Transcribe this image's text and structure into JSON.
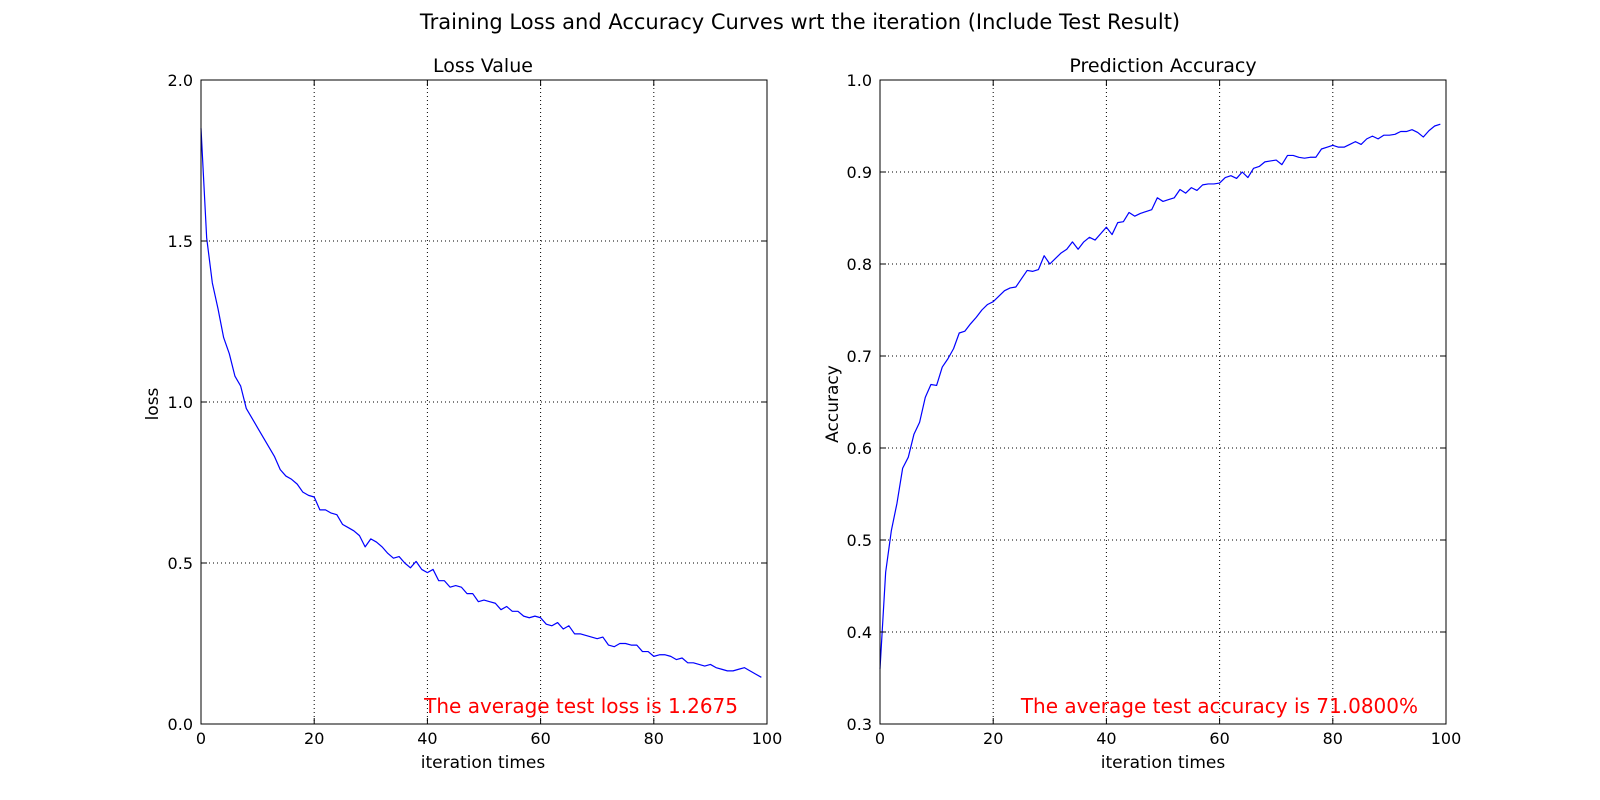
{
  "figure": {
    "suptitle": "Training Loss and Accuracy Curves wrt the iteration (Include Test Result)"
  },
  "colors": {
    "line": "#0000ff",
    "annotation": "#ff0000",
    "axes": "#000000",
    "grid": "#000000"
  },
  "chart_data": [
    {
      "type": "line",
      "title": "Loss Value",
      "xlabel": "iteration times",
      "ylabel": "loss",
      "xlim": [
        0,
        100
      ],
      "ylim": [
        0,
        2.0
      ],
      "xticks": [
        0,
        20,
        40,
        60,
        80,
        100
      ],
      "yticks": [
        0.0,
        0.5,
        1.0,
        1.5,
        2.0
      ],
      "xtick_labels": [
        "0",
        "20",
        "40",
        "60",
        "80",
        "100"
      ],
      "ytick_labels": [
        "0.0",
        "0.5",
        "1.0",
        "1.5",
        "2.0"
      ],
      "grid": true,
      "annotation": "The average test loss is 1.2675",
      "series": [
        {
          "name": "loss",
          "x_start": 0,
          "x_step": 1,
          "values": [
            1.85,
            1.51,
            1.37,
            1.29,
            1.2,
            1.15,
            1.08,
            1.05,
            0.98,
            0.95,
            0.92,
            0.89,
            0.86,
            0.83,
            0.79,
            0.77,
            0.76,
            0.745,
            0.72,
            0.71,
            0.705,
            0.665,
            0.665,
            0.655,
            0.65,
            0.62,
            0.61,
            0.6,
            0.585,
            0.55,
            0.575,
            0.565,
            0.55,
            0.53,
            0.515,
            0.52,
            0.5,
            0.485,
            0.505,
            0.48,
            0.47,
            0.48,
            0.445,
            0.445,
            0.425,
            0.43,
            0.425,
            0.405,
            0.405,
            0.38,
            0.385,
            0.38,
            0.375,
            0.355,
            0.365,
            0.35,
            0.35,
            0.335,
            0.33,
            0.335,
            0.33,
            0.31,
            0.305,
            0.315,
            0.295,
            0.305,
            0.28,
            0.28,
            0.275,
            0.27,
            0.265,
            0.27,
            0.245,
            0.24,
            0.25,
            0.25,
            0.245,
            0.245,
            0.225,
            0.225,
            0.21,
            0.215,
            0.215,
            0.21,
            0.2,
            0.205,
            0.19,
            0.19,
            0.185,
            0.18,
            0.185,
            0.175,
            0.17,
            0.165,
            0.165,
            0.17,
            0.175,
            0.165,
            0.155,
            0.145
          ]
        }
      ]
    },
    {
      "type": "line",
      "title": "Prediction Accuracy",
      "xlabel": "iteration times",
      "ylabel": "Accuracy",
      "xlim": [
        0,
        100
      ],
      "ylim": [
        0.3,
        1.0
      ],
      "xticks": [
        0,
        20,
        40,
        60,
        80,
        100
      ],
      "yticks": [
        0.3,
        0.4,
        0.5,
        0.6,
        0.7,
        0.8,
        0.9,
        1.0
      ],
      "xtick_labels": [
        "0",
        "20",
        "40",
        "60",
        "80",
        "100"
      ],
      "ytick_labels": [
        "0.3",
        "0.4",
        "0.5",
        "0.6",
        "0.7",
        "0.8",
        "0.9",
        "1.0"
      ],
      "grid": true,
      "annotation": "The average test accuracy is 71.0800%",
      "series": [
        {
          "name": "accuracy",
          "x_start": 0,
          "x_step": 1,
          "values": [
            0.36,
            0.465,
            0.51,
            0.54,
            0.578,
            0.59,
            0.615,
            0.628,
            0.655,
            0.669,
            0.668,
            0.688,
            0.697,
            0.708,
            0.725,
            0.727,
            0.735,
            0.742,
            0.75,
            0.756,
            0.759,
            0.765,
            0.771,
            0.774,
            0.775,
            0.784,
            0.793,
            0.792,
            0.794,
            0.809,
            0.8,
            0.806,
            0.812,
            0.816,
            0.824,
            0.816,
            0.824,
            0.829,
            0.826,
            0.833,
            0.84,
            0.832,
            0.845,
            0.846,
            0.856,
            0.852,
            0.855,
            0.857,
            0.859,
            0.872,
            0.868,
            0.87,
            0.872,
            0.881,
            0.877,
            0.883,
            0.88,
            0.886,
            0.887,
            0.887,
            0.888,
            0.894,
            0.896,
            0.893,
            0.9,
            0.894,
            0.904,
            0.906,
            0.911,
            0.912,
            0.913,
            0.908,
            0.918,
            0.918,
            0.916,
            0.915,
            0.916,
            0.916,
            0.925,
            0.927,
            0.929,
            0.927,
            0.927,
            0.93,
            0.933,
            0.93,
            0.936,
            0.939,
            0.936,
            0.94,
            0.94,
            0.941,
            0.944,
            0.944,
            0.946,
            0.943,
            0.938,
            0.945,
            0.95,
            0.952
          ]
        }
      ]
    }
  ]
}
